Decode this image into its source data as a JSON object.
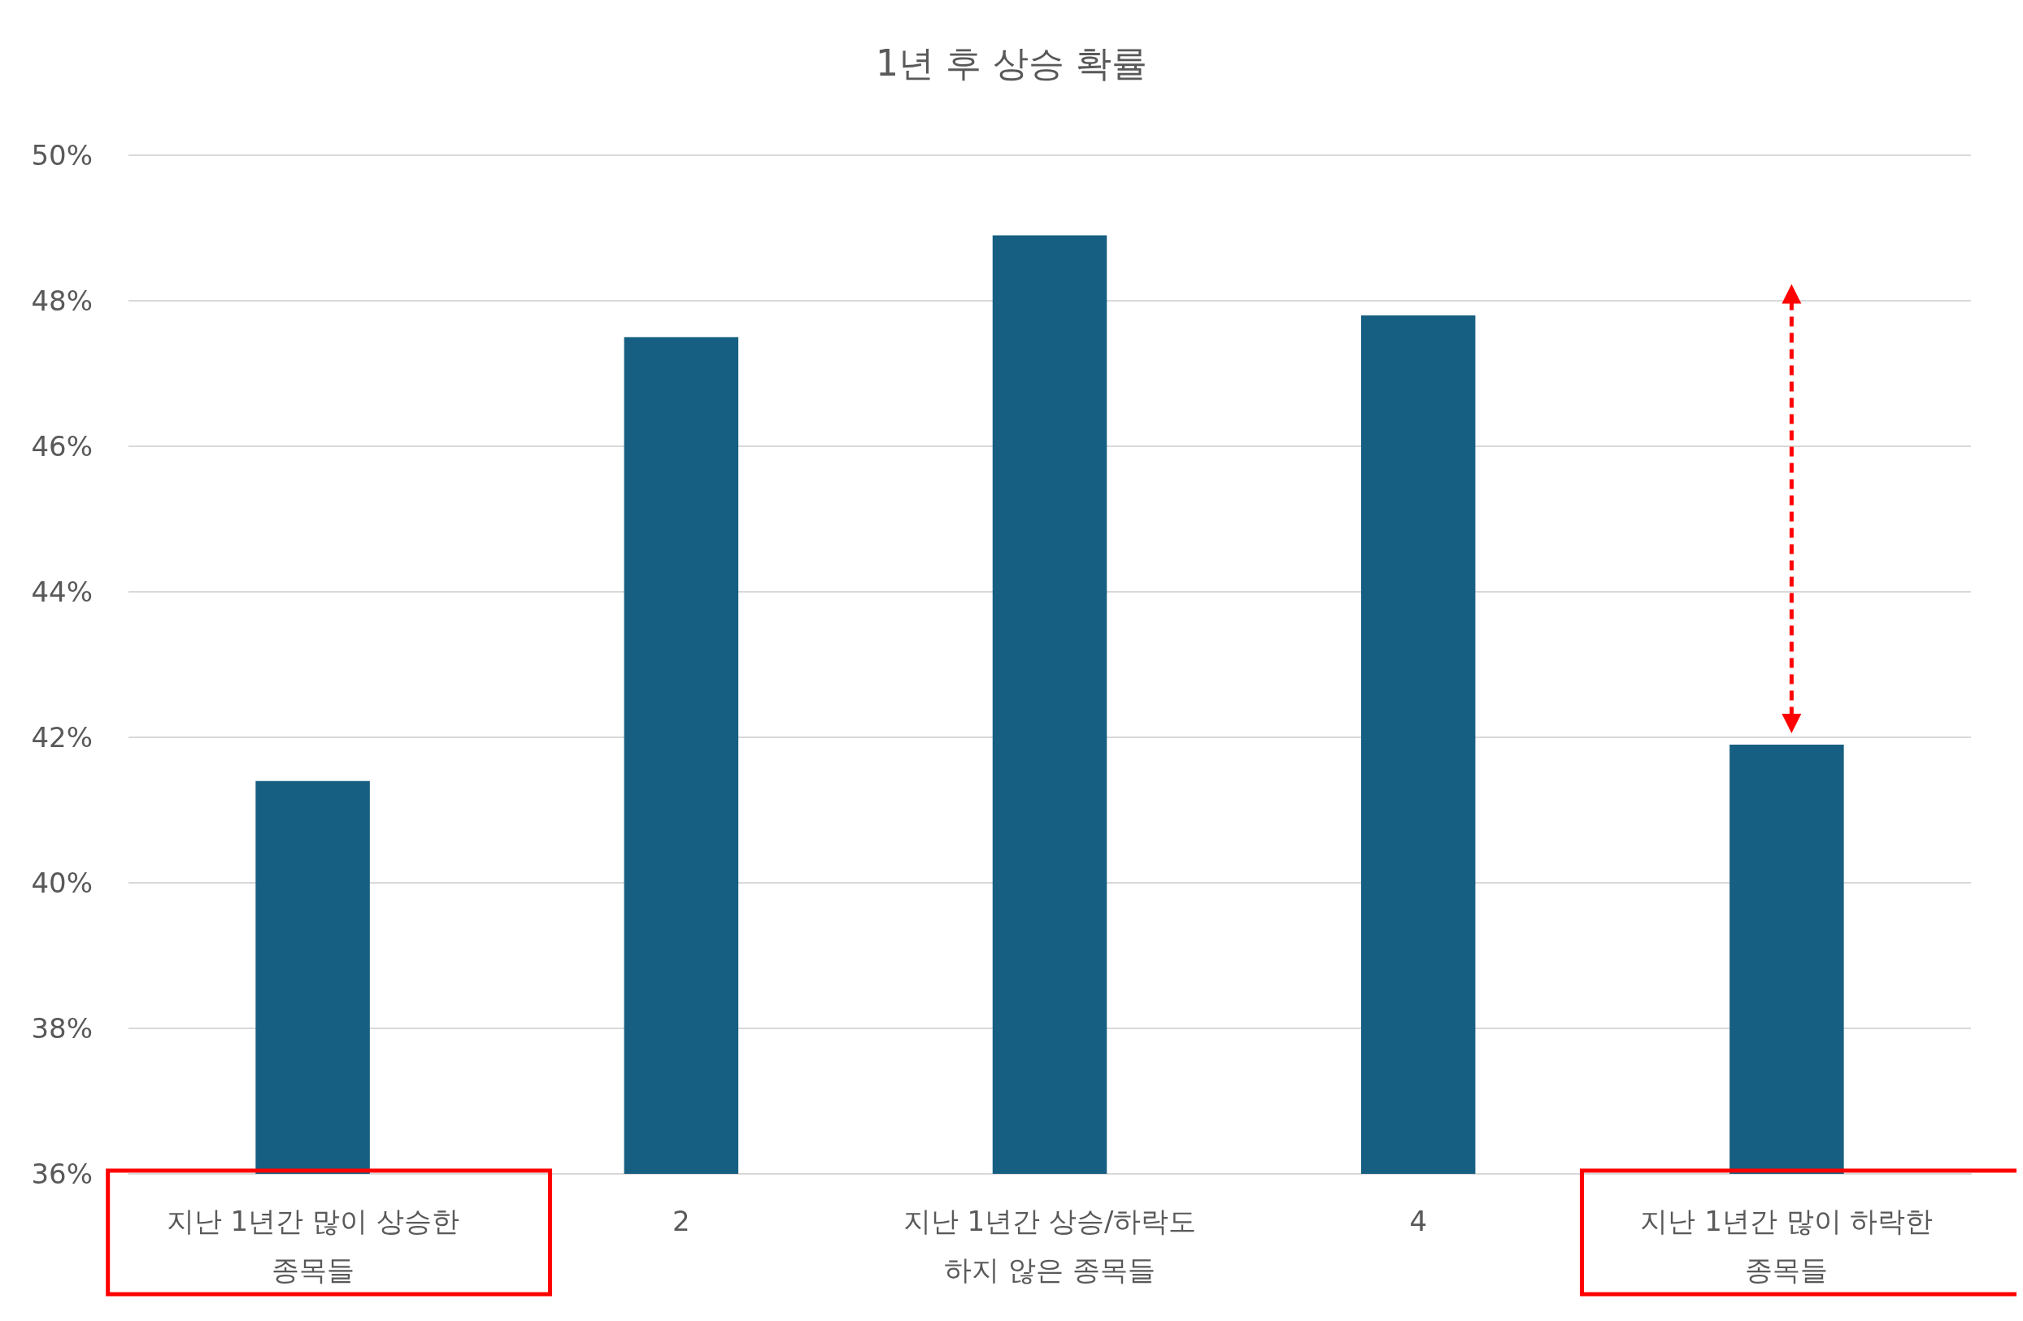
{
  "chart_data": {
    "type": "bar",
    "title": "1년 후 상승 확률",
    "categories": [
      "지난 1년간 많이 상승한\n종목들",
      "2",
      "지난 1년간 상승/하락도\n하지 않은 종목들",
      "4",
      "지난 1년간 많이 하락한\n종목들"
    ],
    "values": [
      41.4,
      47.5,
      48.9,
      47.8,
      41.9
    ],
    "color": "#175f82",
    "ylim": [
      36,
      50
    ],
    "yticks": [
      {
        "value": 36,
        "label": "36%"
      },
      {
        "value": 38,
        "label": "38%"
      },
      {
        "value": 40,
        "label": "40%"
      },
      {
        "value": 42,
        "label": "42%"
      },
      {
        "value": 44,
        "label": "44%"
      },
      {
        "value": 46,
        "label": "46%"
      },
      {
        "value": 48,
        "label": "48%"
      },
      {
        "value": 50,
        "label": "50%"
      }
    ],
    "grid": "y"
  }
}
